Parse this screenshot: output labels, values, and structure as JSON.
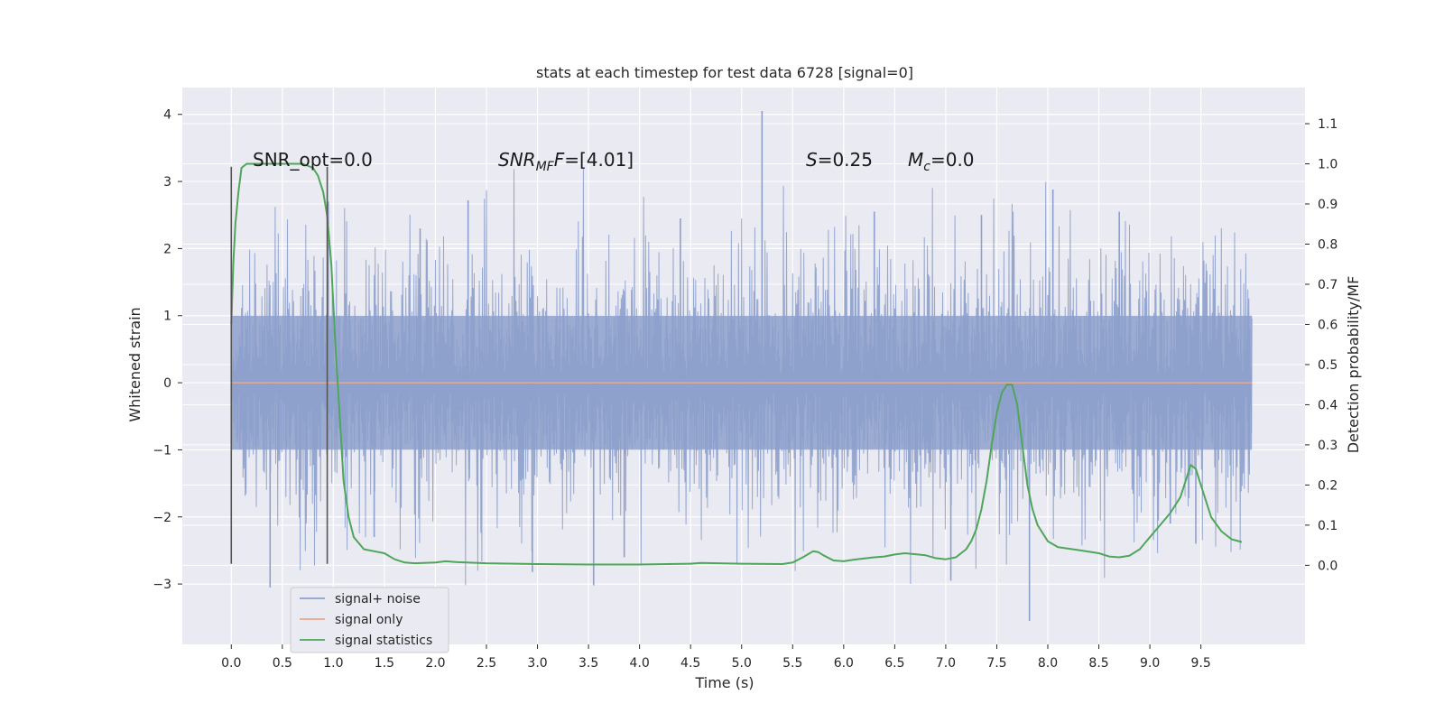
{
  "chart_data": {
    "type": "line",
    "title": "stats at each timestep for test data 6728 [signal=0]",
    "xlabel": "Time (s)",
    "ylabel": "Whitened strain",
    "y2label": "Detection probability/MF",
    "xlim": [
      -0.48,
      10.52
    ],
    "ylim": [
      -3.9,
      4.4
    ],
    "y2lim": [
      -0.197,
      1.19
    ],
    "xticks": [
      "0.0",
      "0.5",
      "1.0",
      "1.5",
      "2.0",
      "2.5",
      "3.0",
      "3.5",
      "4.0",
      "4.5",
      "5.0",
      "5.5",
      "6.0",
      "6.5",
      "7.0",
      "7.5",
      "8.0",
      "8.5",
      "9.0",
      "9.5"
    ],
    "yticks": [
      "4",
      "3",
      "2",
      "1",
      "0",
      "−1",
      "−2",
      "−3"
    ],
    "y2ticks": [
      "1.1",
      "1.0",
      "0.9",
      "0.8",
      "0.7",
      "0.6",
      "0.5",
      "0.4",
      "0.3",
      "0.2",
      "0.1",
      "0.0"
    ],
    "grid": true,
    "legend_position": "lower-left",
    "annotations": {
      "snr_opt": "SNR_opt=0.0",
      "snr_mf_main": "SNR",
      "snr_mf_sub": "MF",
      "snr_mf_value": "=[4.01]",
      "s_var": "S",
      "s_value": "=0.25",
      "mc_main": "M",
      "mc_sub": "c",
      "mc_value": "=0.0"
    },
    "vlines": [
      {
        "x": 0.0,
        "y_range": [
          -2.7,
          3.22
        ]
      },
      {
        "x": 0.94,
        "y_range": [
          -2.7,
          3.22
        ]
      }
    ],
    "series": [
      {
        "name": "signal+ noise",
        "color": "#8da0cb",
        "x_range": [
          0.0,
          10.0
        ],
        "band": [
          -1.0,
          1.0
        ],
        "spikes": [
          {
            "x": 0.38,
            "y": -3.05
          },
          {
            "x": 0.95,
            "y": 2.7
          },
          {
            "x": 2.32,
            "y": 2.72
          },
          {
            "x": 2.95,
            "y": -2.82
          },
          {
            "x": 3.55,
            "y": -3.02
          },
          {
            "x": 3.85,
            "y": -2.6
          },
          {
            "x": 5.2,
            "y": 4.05
          },
          {
            "x": 7.05,
            "y": -2.95
          },
          {
            "x": 7.35,
            "y": 2.5
          },
          {
            "x": 7.82,
            "y": -3.55
          },
          {
            "x": 8.05,
            "y": 2.88
          },
          {
            "x": 9.45,
            "y": -2.4
          },
          {
            "x": 1.4,
            "y": -2.3
          },
          {
            "x": 4.4,
            "y": 2.45
          },
          {
            "x": 6.3,
            "y": 2.55
          },
          {
            "x": 8.7,
            "y": 2.55
          },
          {
            "x": 9.2,
            "y": -2.1
          },
          {
            "x": 1.85,
            "y": 2.3
          }
        ]
      },
      {
        "name": "signal only",
        "color": "#e5a98c",
        "x": [
          0.0,
          10.0
        ],
        "y": [
          0.0,
          0.0
        ]
      },
      {
        "name": "signal statistics",
        "color": "#4fa65a",
        "axis": "right",
        "x": [
          0.0,
          0.02,
          0.04,
          0.07,
          0.1,
          0.15,
          0.2,
          0.3,
          0.4,
          0.5,
          0.6,
          0.7,
          0.8,
          0.85,
          0.9,
          0.94,
          0.98,
          1.02,
          1.06,
          1.1,
          1.15,
          1.2,
          1.3,
          1.4,
          1.5,
          1.6,
          1.7,
          1.8,
          2.0,
          2.1,
          2.2,
          2.5,
          3.0,
          3.5,
          4.0,
          4.5,
          4.6,
          5.0,
          5.4,
          5.5,
          5.6,
          5.7,
          5.75,
          5.8,
          5.9,
          6.0,
          6.1,
          6.3,
          6.4,
          6.5,
          6.6,
          6.8,
          6.9,
          7.0,
          7.1,
          7.2,
          7.25,
          7.3,
          7.35,
          7.4,
          7.45,
          7.5,
          7.55,
          7.6,
          7.65,
          7.7,
          7.75,
          7.8,
          7.85,
          7.9,
          8.0,
          8.1,
          8.3,
          8.5,
          8.6,
          8.7,
          8.8,
          8.9,
          9.0,
          9.1,
          9.2,
          9.3,
          9.35,
          9.4,
          9.45,
          9.5,
          9.55,
          9.6,
          9.7,
          9.8,
          9.9
        ],
        "y": [
          0.6,
          0.75,
          0.85,
          0.93,
          0.99,
          1.0,
          1.0,
          1.0,
          1.0,
          1.0,
          1.0,
          1.0,
          0.99,
          0.97,
          0.93,
          0.87,
          0.75,
          0.55,
          0.38,
          0.21,
          0.12,
          0.07,
          0.04,
          0.035,
          0.03,
          0.015,
          0.007,
          0.005,
          0.007,
          0.01,
          0.008,
          0.005,
          0.003,
          0.002,
          0.002,
          0.004,
          0.006,
          0.004,
          0.003,
          0.007,
          0.02,
          0.035,
          0.033,
          0.025,
          0.012,
          0.01,
          0.014,
          0.02,
          0.022,
          0.027,
          0.03,
          0.025,
          0.018,
          0.015,
          0.02,
          0.04,
          0.06,
          0.09,
          0.14,
          0.21,
          0.3,
          0.38,
          0.43,
          0.45,
          0.45,
          0.4,
          0.3,
          0.2,
          0.14,
          0.1,
          0.06,
          0.045,
          0.038,
          0.03,
          0.022,
          0.02,
          0.024,
          0.04,
          0.07,
          0.1,
          0.13,
          0.17,
          0.21,
          0.25,
          0.24,
          0.2,
          0.16,
          0.12,
          0.085,
          0.065,
          0.058
        ]
      }
    ]
  }
}
